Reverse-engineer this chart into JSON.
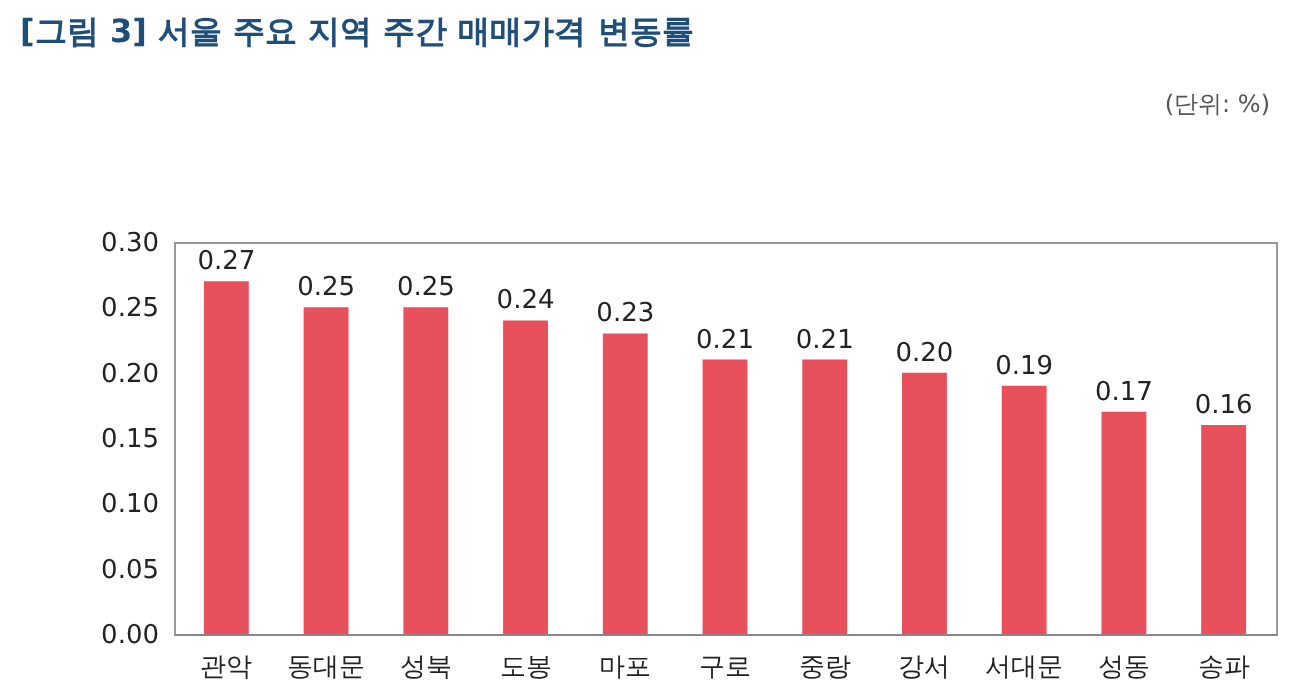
{
  "chart_data": {
    "type": "bar",
    "title": "[그림 3] 서울 주요 지역 주간 매매가격 변동률",
    "annotations": [
      "(단위: %)"
    ],
    "categories": [
      "관악",
      "동대문",
      "성북",
      "도봉",
      "마포",
      "구로",
      "중랑",
      "강서",
      "서대문",
      "성동",
      "송파"
    ],
    "values": [
      0.27,
      0.25,
      0.25,
      0.24,
      0.23,
      0.21,
      0.21,
      0.2,
      0.19,
      0.17,
      0.16
    ],
    "value_labels": [
      "0.27",
      "0.25",
      "0.25",
      "0.24",
      "0.23",
      "0.21",
      "0.21",
      "0.20",
      "0.19",
      "0.17",
      "0.16"
    ],
    "color": "#e8505b",
    "ylim": [
      0,
      0.3
    ],
    "yticks": [
      {
        "value": 0,
        "label": "0.00"
      },
      {
        "value": 0.05,
        "label": "0.05"
      },
      {
        "value": 0.1,
        "label": "0.10"
      },
      {
        "value": 0.15,
        "label": "0.15"
      },
      {
        "value": 0.2,
        "label": "0.20"
      },
      {
        "value": 0.25,
        "label": "0.25"
      },
      {
        "value": 0.3,
        "label": "0.30"
      }
    ],
    "grid": false
  }
}
